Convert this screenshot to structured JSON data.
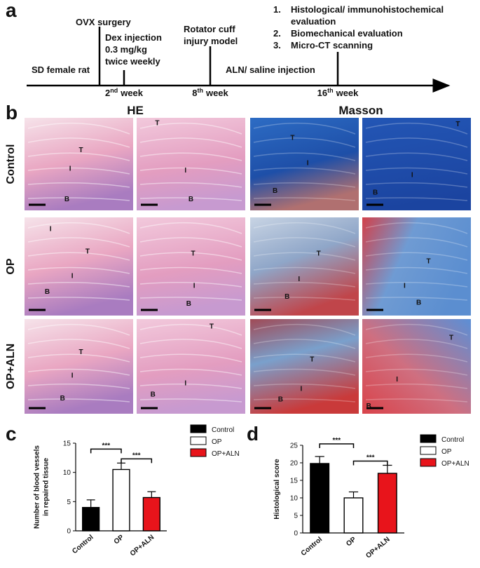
{
  "panel_labels": [
    "a",
    "b",
    "c",
    "d"
  ],
  "timeline": {
    "start": "SD female rat",
    "surgery": "OVX surgery",
    "dex_lines": [
      "Dex injection",
      "0.3 mg/kg",
      "twice weekly"
    ],
    "injury_lines": [
      "Rotator cuff",
      "injury model"
    ],
    "treatment": "ALN/ saline injection",
    "weeks": [
      {
        "number": "2",
        "suffix": "nd",
        "unit": "week"
      },
      {
        "number": "8",
        "suffix": "th",
        "unit": "week"
      },
      {
        "number": "16",
        "suffix": "th",
        "unit": "week"
      }
    ],
    "outcomes": [
      {
        "number": "1.",
        "lines": [
          "Histological/ immunohistochemical",
          "evaluation"
        ]
      },
      {
        "number": "2.",
        "lines": [
          "Biomechanical evaluation"
        ]
      },
      {
        "number": "3.",
        "lines": [
          "Micro-CT scanning"
        ]
      }
    ]
  },
  "histology": {
    "column_titles": [
      "HE",
      "Masson"
    ],
    "row_labels": [
      "Control",
      "OP",
      "OP+ALN"
    ],
    "images": [
      [
        [
          "T",
          "I",
          "B"
        ],
        [
          "T",
          "I",
          "B"
        ],
        [
          "T",
          "I",
          "B"
        ],
        [
          "T",
          "I",
          "B"
        ]
      ],
      [
        [
          "I",
          "T",
          "I",
          "B"
        ],
        [
          "T",
          "I",
          "B"
        ],
        [
          "T",
          "I",
          "B"
        ],
        [
          "T",
          "I",
          "B"
        ]
      ],
      [
        [
          "T",
          "I",
          "B"
        ],
        [
          "T",
          "I",
          "B"
        ],
        [
          "T",
          "I",
          "B"
        ],
        [
          "T",
          "I",
          "B"
        ]
      ]
    ]
  },
  "chart_data": [
    {
      "type": "bar",
      "ylabel_lines": [
        "Number of blood vessels",
        "in repaired tissue"
      ],
      "categories": [
        "Control",
        "OP",
        "OP+ALN"
      ],
      "values": [
        4,
        10.5,
        5.7
      ],
      "errors": [
        1.3,
        1.1,
        1.0
      ],
      "colors": [
        "#000000",
        "#ffffff",
        "#e8141b"
      ],
      "ylim": [
        0,
        15
      ],
      "yticks": [
        0,
        5,
        10,
        15
      ],
      "annotations": [
        {
          "text": "***",
          "between": [
            "Control",
            "OP"
          ]
        },
        {
          "text": "***",
          "between": [
            "OP",
            "OP+ALN"
          ]
        }
      ]
    },
    {
      "type": "bar",
      "ylabel_lines": [
        "Histological score"
      ],
      "categories": [
        "Control",
        "OP",
        "OP+ALN"
      ],
      "values": [
        19.8,
        10,
        17
      ],
      "errors": [
        2,
        1.7,
        2.3
      ],
      "colors": [
        "#000000",
        "#ffffff",
        "#e8141b"
      ],
      "ylim": [
        0,
        25
      ],
      "yticks": [
        0,
        5,
        10,
        15,
        20,
        25
      ],
      "annotations": [
        {
          "text": "***",
          "between": [
            "Control",
            "OP"
          ]
        },
        {
          "text": "***",
          "between": [
            "OP",
            "OP+ALN"
          ]
        }
      ]
    }
  ]
}
